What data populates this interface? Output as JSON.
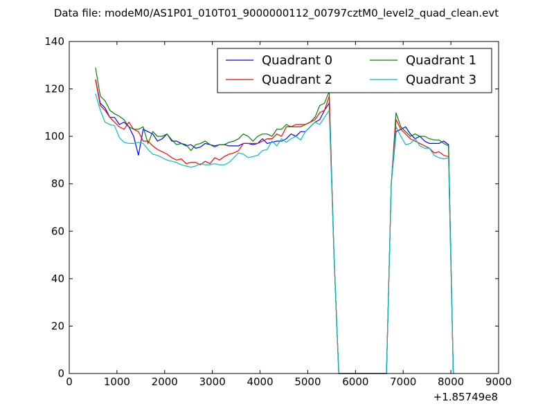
{
  "chart_data": {
    "type": "line",
    "title": "Data file: modeM0/AS1P01_010T01_9000000112_00797cztM0_level2_quad_clean.evt",
    "xlabel": "",
    "ylabel": "",
    "x_offset_label": "+1.85749e8",
    "xlim": [
      0,
      9000
    ],
    "ylim": [
      0,
      140
    ],
    "x_ticks": [
      0,
      1000,
      2000,
      3000,
      4000,
      5000,
      6000,
      7000,
      8000,
      9000
    ],
    "y_ticks": [
      0,
      20,
      40,
      60,
      80,
      100,
      120,
      140
    ],
    "grid": false,
    "legend_position": "top-right",
    "legend_columns": 2,
    "series": [
      {
        "name": "Quadrant 0",
        "color": "#0000ff",
        "points": [
          [
            550,
            124
          ],
          [
            650,
            114
          ],
          [
            750,
            112
          ],
          [
            850,
            108
          ],
          [
            950,
            108
          ],
          [
            1050,
            105
          ],
          [
            1150,
            106
          ],
          [
            1250,
            104
          ],
          [
            1350,
            100
          ],
          [
            1450,
            92
          ],
          [
            1550,
            103
          ],
          [
            1650,
            102
          ],
          [
            1750,
            101
          ],
          [
            1850,
            98
          ],
          [
            1950,
            99
          ],
          [
            2050,
            101
          ],
          [
            2150,
            98
          ],
          [
            2250,
            98
          ],
          [
            2350,
            97
          ],
          [
            2450,
            96
          ],
          [
            2550,
            96.5
          ],
          [
            2650,
            95
          ],
          [
            2750,
            95.5
          ],
          [
            2850,
            97
          ],
          [
            2950,
            96.5
          ],
          [
            3050,
            96
          ],
          [
            3150,
            96.5
          ],
          [
            3250,
            96.5
          ],
          [
            3350,
            96
          ],
          [
            3450,
            96
          ],
          [
            3550,
            96
          ],
          [
            3650,
            97
          ],
          [
            3750,
            97
          ],
          [
            3850,
            96.5
          ],
          [
            3950,
            97
          ],
          [
            4050,
            99
          ],
          [
            4150,
            97
          ],
          [
            4250,
            97.5
          ],
          [
            4350,
            98
          ],
          [
            4450,
            98
          ],
          [
            4550,
            99
          ],
          [
            4650,
            101
          ],
          [
            4750,
            100
          ],
          [
            4850,
            102
          ],
          [
            4950,
            102
          ],
          [
            5050,
            104
          ],
          [
            5150,
            106
          ],
          [
            5250,
            107
          ],
          [
            5350,
            111
          ],
          [
            5450,
            114
          ],
          [
            5550,
            50
          ],
          [
            5650,
            0
          ],
          [
            6650,
            0
          ],
          [
            6750,
            80
          ],
          [
            6850,
            102
          ],
          [
            6950,
            103
          ],
          [
            7050,
            104
          ],
          [
            7150,
            101
          ],
          [
            7250,
            99
          ],
          [
            7350,
            100
          ],
          [
            7450,
            98
          ],
          [
            7550,
            97
          ],
          [
            7650,
            97
          ],
          [
            7750,
            97
          ],
          [
            7850,
            98
          ],
          [
            7950,
            96.5
          ],
          [
            8050,
            0
          ]
        ]
      },
      {
        "name": "Quadrant 1",
        "color": "#008000",
        "points": [
          [
            550,
            129
          ],
          [
            650,
            117
          ],
          [
            750,
            115
          ],
          [
            850,
            111
          ],
          [
            950,
            109.5
          ],
          [
            1050,
            108.5
          ],
          [
            1150,
            107
          ],
          [
            1250,
            104
          ],
          [
            1350,
            103
          ],
          [
            1450,
            103
          ],
          [
            1550,
            104
          ],
          [
            1650,
            97
          ],
          [
            1750,
            102
          ],
          [
            1850,
            100
          ],
          [
            1950,
            100
          ],
          [
            2050,
            101
          ],
          [
            2150,
            98.5
          ],
          [
            2250,
            96.5
          ],
          [
            2350,
            97
          ],
          [
            2450,
            96.5
          ],
          [
            2550,
            94
          ],
          [
            2650,
            96.5
          ],
          [
            2750,
            97
          ],
          [
            2850,
            98
          ],
          [
            2950,
            96.5
          ],
          [
            3050,
            95.5
          ],
          [
            3150,
            96.5
          ],
          [
            3250,
            96.5
          ],
          [
            3350,
            97.5
          ],
          [
            3450,
            98
          ],
          [
            3550,
            99
          ],
          [
            3650,
            101
          ],
          [
            3750,
            100
          ],
          [
            3850,
            98
          ],
          [
            3950,
            100
          ],
          [
            4050,
            101
          ],
          [
            4150,
            101
          ],
          [
            4250,
            100
          ],
          [
            4350,
            103
          ],
          [
            4450,
            103
          ],
          [
            4550,
            105
          ],
          [
            4650,
            104
          ],
          [
            4750,
            104
          ],
          [
            4850,
            104
          ],
          [
            4950,
            105
          ],
          [
            5050,
            106
          ],
          [
            5150,
            108
          ],
          [
            5250,
            113
          ],
          [
            5350,
            114
          ],
          [
            5450,
            119
          ],
          [
            5550,
            50
          ],
          [
            5650,
            0
          ],
          [
            6650,
            0
          ],
          [
            6750,
            80
          ],
          [
            6850,
            110
          ],
          [
            6950,
            104
          ],
          [
            7050,
            102
          ],
          [
            7150,
            100
          ],
          [
            7250,
            101
          ],
          [
            7350,
            100
          ],
          [
            7450,
            100
          ],
          [
            7550,
            99
          ],
          [
            7650,
            98.5
          ],
          [
            7750,
            98.5
          ],
          [
            7850,
            97
          ],
          [
            7950,
            96
          ],
          [
            8050,
            0
          ]
        ]
      },
      {
        "name": "Quadrant 2",
        "color": "#ff0000",
        "points": [
          [
            550,
            124
          ],
          [
            650,
            113
          ],
          [
            750,
            111
          ],
          [
            850,
            108
          ],
          [
            950,
            106
          ],
          [
            1050,
            104
          ],
          [
            1150,
            103
          ],
          [
            1250,
            106
          ],
          [
            1350,
            103
          ],
          [
            1450,
            102
          ],
          [
            1550,
            98
          ],
          [
            1650,
            98
          ],
          [
            1750,
            96
          ],
          [
            1850,
            94.5
          ],
          [
            1950,
            93.5
          ],
          [
            2050,
            92.5
          ],
          [
            2150,
            91
          ],
          [
            2250,
            90
          ],
          [
            2350,
            90.5
          ],
          [
            2450,
            88.5
          ],
          [
            2550,
            89
          ],
          [
            2650,
            89
          ],
          [
            2750,
            88
          ],
          [
            2850,
            89.5
          ],
          [
            2950,
            88.5
          ],
          [
            3050,
            91
          ],
          [
            3150,
            90
          ],
          [
            3250,
            91.5
          ],
          [
            3350,
            92.5
          ],
          [
            3450,
            93
          ],
          [
            3550,
            94
          ],
          [
            3650,
            97
          ],
          [
            3750,
            97
          ],
          [
            3850,
            97
          ],
          [
            3950,
            97
          ],
          [
            4050,
            98
          ],
          [
            4150,
            99
          ],
          [
            4250,
            99
          ],
          [
            4350,
            101
          ],
          [
            4450,
            100
          ],
          [
            4550,
            104
          ],
          [
            4650,
            104
          ],
          [
            4750,
            105
          ],
          [
            4850,
            105
          ],
          [
            4950,
            105
          ],
          [
            5050,
            106
          ],
          [
            5150,
            107
          ],
          [
            5250,
            110
          ],
          [
            5350,
            111
          ],
          [
            5450,
            117
          ],
          [
            5550,
            50
          ],
          [
            5650,
            0
          ],
          [
            6650,
            0
          ],
          [
            6750,
            80
          ],
          [
            6850,
            107
          ],
          [
            6950,
            103
          ],
          [
            7050,
            101
          ],
          [
            7150,
            99
          ],
          [
            7250,
            98
          ],
          [
            7350,
            97
          ],
          [
            7450,
            96
          ],
          [
            7550,
            95
          ],
          [
            7650,
            93
          ],
          [
            7750,
            93.5
          ],
          [
            7850,
            92
          ],
          [
            7950,
            91.5
          ],
          [
            8050,
            0
          ]
        ]
      },
      {
        "name": "Quadrant 3",
        "color": "#00bfbf",
        "points": [
          [
            550,
            118
          ],
          [
            650,
            111
          ],
          [
            750,
            106
          ],
          [
            850,
            105
          ],
          [
            950,
            104.5
          ],
          [
            1050,
            99.5
          ],
          [
            1150,
            97.5
          ],
          [
            1250,
            97
          ],
          [
            1350,
            97
          ],
          [
            1450,
            97.5
          ],
          [
            1550,
            97
          ],
          [
            1650,
            94.5
          ],
          [
            1750,
            92.5
          ],
          [
            1850,
            92
          ],
          [
            1950,
            91
          ],
          [
            2050,
            90
          ],
          [
            2150,
            89.5
          ],
          [
            2250,
            89
          ],
          [
            2350,
            88
          ],
          [
            2450,
            87.5
          ],
          [
            2550,
            87
          ],
          [
            2650,
            87.5
          ],
          [
            2750,
            88.5
          ],
          [
            2850,
            88
          ],
          [
            2950,
            88
          ],
          [
            3050,
            88.5
          ],
          [
            3150,
            88
          ],
          [
            3250,
            88
          ],
          [
            3350,
            89
          ],
          [
            3450,
            91
          ],
          [
            3550,
            93
          ],
          [
            3650,
            92.5
          ],
          [
            3750,
            91
          ],
          [
            3850,
            91.5
          ],
          [
            3950,
            92
          ],
          [
            4050,
            94
          ],
          [
            4150,
            94.5
          ],
          [
            4250,
            98
          ],
          [
            4350,
            96
          ],
          [
            4450,
            99
          ],
          [
            4550,
            97.5
          ],
          [
            4650,
            99
          ],
          [
            4750,
            100
          ],
          [
            4850,
            98.5
          ],
          [
            4950,
            102
          ],
          [
            5050,
            104
          ],
          [
            5150,
            106
          ],
          [
            5250,
            105
          ],
          [
            5350,
            108
          ],
          [
            5450,
            111
          ],
          [
            5550,
            50
          ],
          [
            5650,
            0
          ],
          [
            6650,
            0
          ],
          [
            6750,
            80
          ],
          [
            6850,
            104
          ],
          [
            6950,
            100
          ],
          [
            7050,
            96.5
          ],
          [
            7150,
            97
          ],
          [
            7250,
            99
          ],
          [
            7350,
            96
          ],
          [
            7450,
            95
          ],
          [
            7550,
            95
          ],
          [
            7650,
            92
          ],
          [
            7750,
            91
          ],
          [
            7850,
            90.5
          ],
          [
            7950,
            91
          ],
          [
            8050,
            0
          ]
        ]
      }
    ]
  }
}
